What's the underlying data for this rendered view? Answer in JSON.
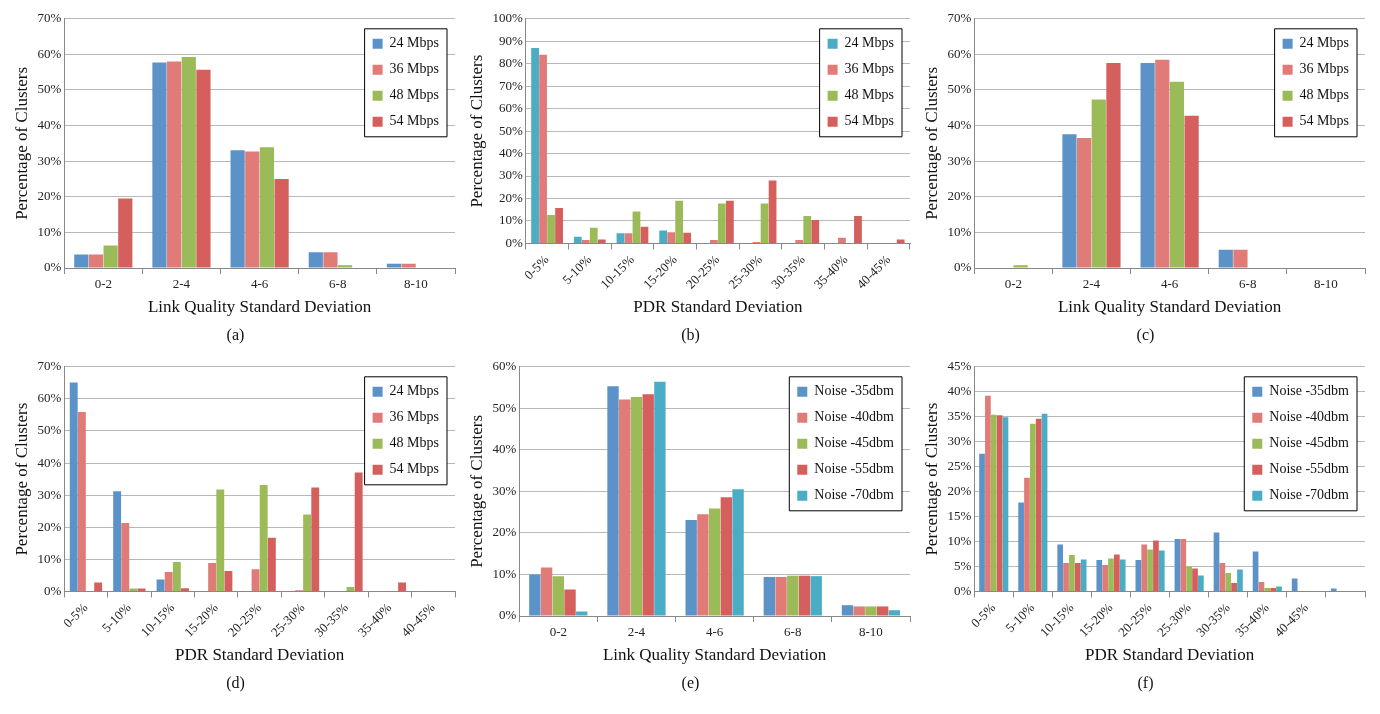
{
  "chart_data": [
    {
      "type": "bar",
      "xlabel": "Link Quality Standard Deviation",
      "ylabel": "Percentage of Clusters",
      "annotations": [
        "(a)"
      ],
      "categories": [
        "0-2",
        "2-4",
        "4-6",
        "6-8",
        "8-10"
      ],
      "series": [
        {
          "name": "24 Mbps",
          "color": "#5b93c9",
          "values": [
            3.8,
            57.7,
            33.1,
            4.4,
            1.2
          ]
        },
        {
          "name": "36 Mbps",
          "color": "#e07b78",
          "values": [
            3.8,
            58,
            32.7,
            4.4,
            1.2
          ]
        },
        {
          "name": "48 Mbps",
          "color": "#9bbb59",
          "values": [
            6.3,
            59.3,
            33.9,
            0.8,
            0
          ]
        },
        {
          "name": "54 Mbps",
          "color": "#d45f5c",
          "values": [
            19.5,
            55.7,
            25,
            0,
            0
          ]
        }
      ],
      "ylim": [
        0,
        70
      ],
      "yticks": [
        {
          "value": 0,
          "label": "0%"
        },
        {
          "value": 10,
          "label": "10%"
        },
        {
          "value": 20,
          "label": "20%"
        },
        {
          "value": 30,
          "label": "30%"
        },
        {
          "value": 40,
          "label": "40%"
        },
        {
          "value": 50,
          "label": "50%"
        },
        {
          "value": 60,
          "label": "60%"
        },
        {
          "value": 70,
          "label": "70%"
        }
      ],
      "grid": "y",
      "legend": "top right"
    },
    {
      "type": "bar",
      "xlabel": "PDR Standard Deviation",
      "ylabel": "Percentage of Clusters",
      "annotations": [
        "(b)"
      ],
      "categories": [
        "0-5%",
        "5-10%",
        "10-15%",
        "15-20%",
        "20-25%",
        "25-30%",
        "30-35%",
        "35-40%",
        "40-45%"
      ],
      "series": [
        {
          "name": "24 Mbps",
          "color": "#4bacc6",
          "values": [
            87,
            3,
            4.5,
            5.8,
            0,
            0,
            0,
            0,
            0
          ]
        },
        {
          "name": "36 Mbps",
          "color": "#e07b78",
          "values": [
            84,
            1.5,
            4.5,
            5,
            1.5,
            0.7,
            1.5,
            2.5,
            0
          ]
        },
        {
          "name": "48 Mbps",
          "color": "#9bbb59",
          "values": [
            12.7,
            7,
            14.2,
            19,
            17.8,
            17.8,
            12.2,
            0,
            0
          ]
        },
        {
          "name": "54 Mbps",
          "color": "#d45f5c",
          "values": [
            15.8,
            1.8,
            7.4,
            4.8,
            19,
            28,
            10.5,
            12.2,
            1.8
          ]
        }
      ],
      "ylim": [
        0,
        100
      ],
      "yticks": [
        {
          "value": 0,
          "label": "0%"
        },
        {
          "value": 10,
          "label": "10%"
        },
        {
          "value": 20,
          "label": "20%"
        },
        {
          "value": 30,
          "label": "30%"
        },
        {
          "value": 40,
          "label": "40%"
        },
        {
          "value": 50,
          "label": "50%"
        },
        {
          "value": 60,
          "label": "60%"
        },
        {
          "value": 70,
          "label": "70%"
        },
        {
          "value": 80,
          "label": "80%"
        },
        {
          "value": 90,
          "label": "90%"
        },
        {
          "value": 100,
          "label": "100%"
        }
      ],
      "grid": "y",
      "legend": "top right"
    },
    {
      "type": "bar",
      "xlabel": "Link Quality Standard Deviation",
      "ylabel": "Percentage of Clusters",
      "annotations": [
        "(c)"
      ],
      "categories": [
        "0-2",
        "2-4",
        "4-6",
        "6-8",
        "8-10"
      ],
      "series": [
        {
          "name": "24 Mbps",
          "color": "#5b93c9",
          "values": [
            0,
            37.6,
            57.6,
            5.1,
            0
          ]
        },
        {
          "name": "36 Mbps",
          "color": "#e07b78",
          "values": [
            0,
            36.5,
            58.5,
            5.1,
            0
          ]
        },
        {
          "name": "48 Mbps",
          "color": "#9bbb59",
          "values": [
            0.8,
            47.3,
            52.3,
            0,
            0
          ]
        },
        {
          "name": "54 Mbps",
          "color": "#d45f5c",
          "values": [
            0,
            57.6,
            42.8,
            0,
            0
          ]
        }
      ],
      "ylim": [
        0,
        70
      ],
      "yticks": [
        {
          "value": 0,
          "label": "0%"
        },
        {
          "value": 10,
          "label": "10%"
        },
        {
          "value": 20,
          "label": "20%"
        },
        {
          "value": 30,
          "label": "30%"
        },
        {
          "value": 40,
          "label": "40%"
        },
        {
          "value": 50,
          "label": "50%"
        },
        {
          "value": 60,
          "label": "60%"
        },
        {
          "value": 70,
          "label": "70%"
        }
      ],
      "grid": "y",
      "legend": "top right"
    },
    {
      "type": "bar",
      "xlabel": "PDR Standard Deviation",
      "ylabel": "Percentage of Clusters",
      "annotations": [
        "(d)"
      ],
      "categories": [
        "0-5%",
        "5-10%",
        "10-15%",
        "15-20%",
        "20-25%",
        "25-30%",
        "30-35%",
        "35-40%",
        "40-45%"
      ],
      "series": [
        {
          "name": "24 Mbps",
          "color": "#5b93c9",
          "values": [
            65.1,
            31.2,
            3.7,
            0,
            0,
            0,
            0,
            0,
            0
          ]
        },
        {
          "name": "36 Mbps",
          "color": "#e07b78",
          "values": [
            55.9,
            21.3,
            6.1,
            8.9,
            6.9,
            0.4,
            0,
            0,
            0
          ]
        },
        {
          "name": "48 Mbps",
          "color": "#9bbb59",
          "values": [
            0,
            0.9,
            9.2,
            31.8,
            33.2,
            24,
            1.4,
            0,
            0
          ]
        },
        {
          "name": "54 Mbps",
          "color": "#d45f5c",
          "values": [
            2.8,
            0.9,
            1,
            6.4,
            16.7,
            32.4,
            37.1,
            2.8,
            0
          ]
        }
      ],
      "ylim": [
        0,
        70
      ],
      "yticks": [
        {
          "value": 0,
          "label": "0%"
        },
        {
          "value": 10,
          "label": "10%"
        },
        {
          "value": 20,
          "label": "20%"
        },
        {
          "value": 30,
          "label": "30%"
        },
        {
          "value": 40,
          "label": "40%"
        },
        {
          "value": 50,
          "label": "50%"
        },
        {
          "value": 60,
          "label": "60%"
        },
        {
          "value": 70,
          "label": "70%"
        }
      ],
      "grid": "y",
      "legend": "top right"
    },
    {
      "type": "bar",
      "xlabel": "Link Quality Standard Deviation",
      "ylabel": "Percentage of Clusters",
      "annotations": [
        "(e)"
      ],
      "categories": [
        "0-2",
        "2-4",
        "4-6",
        "6-8",
        "8-10"
      ],
      "series": [
        {
          "name": "Noise -35dbm",
          "color": "#5b93c9",
          "values": [
            10,
            55.3,
            23.1,
            9.4,
            2.6
          ]
        },
        {
          "name": "Noise -40dbm",
          "color": "#e07b78",
          "values": [
            11.7,
            52.1,
            24.5,
            9.4,
            2.3
          ]
        },
        {
          "name": "Noise -45dbm",
          "color": "#9bbb59",
          "values": [
            9.6,
            52.7,
            25.9,
            9.7,
            2.3
          ]
        },
        {
          "name": "Noise -55dbm",
          "color": "#d45f5c",
          "values": [
            6.4,
            53.4,
            28.6,
            9.7,
            2.3
          ]
        },
        {
          "name": "Noise -70dbm",
          "color": "#4bacc6",
          "values": [
            1.1,
            56.4,
            30.5,
            9.6,
            1.4
          ]
        }
      ],
      "ylim": [
        0,
        60
      ],
      "yticks": [
        {
          "value": 0,
          "label": "0%"
        },
        {
          "value": 10,
          "label": "10%"
        },
        {
          "value": 20,
          "label": "20%"
        },
        {
          "value": 30,
          "label": "30%"
        },
        {
          "value": 40,
          "label": "40%"
        },
        {
          "value": 50,
          "label": "50%"
        },
        {
          "value": 60,
          "label": "60%"
        }
      ],
      "grid": "y",
      "legend": "top right"
    },
    {
      "type": "bar",
      "xlabel": "PDR Standard Deviation",
      "ylabel": "Percentage of Clusters",
      "annotations": [
        "(f)"
      ],
      "categories": [
        "0-5%",
        "5-10%",
        "10-15%",
        "15-20%",
        "20-25%",
        "25-30%",
        "30-35%",
        "35-40%",
        "40-45%",
        null
      ],
      "series": [
        {
          "name": "Noise -35dbm",
          "color": "#5b93c9",
          "values": [
            27.6,
            17.8,
            9.4,
            6.3,
            6.3,
            10.5,
            11.8,
            8,
            2.6,
            0.6
          ]
        },
        {
          "name": "Noise -40dbm",
          "color": "#e07b78",
          "values": [
            39.2,
            22.8,
            5.7,
            5.3,
            9.4,
            10.5,
            5.7,
            1.9,
            0,
            0
          ]
        },
        {
          "name": "Noise -45dbm",
          "color": "#9bbb59",
          "values": [
            35.4,
            33.6,
            7.3,
            6.6,
            8.4,
            5,
            3.7,
            0.7,
            0,
            0
          ]
        },
        {
          "name": "Noise -55dbm",
          "color": "#d45f5c",
          "values": [
            35.3,
            34.6,
            5.7,
            7.4,
            10.2,
            4.6,
            1.7,
            0.7,
            0,
            0
          ]
        },
        {
          "name": "Noise -70dbm",
          "color": "#4bacc6",
          "values": [
            34.9,
            35.6,
            6.4,
            6.4,
            8.2,
            3.2,
            4.4,
            1,
            0,
            0
          ]
        }
      ],
      "ylim": [
        0,
        45
      ],
      "yticks": [
        {
          "value": 0,
          "label": "0%"
        },
        {
          "value": 5,
          "label": "5%"
        },
        {
          "value": 10,
          "label": "10%"
        },
        {
          "value": 15,
          "label": "15%"
        },
        {
          "value": 20,
          "label": "20%"
        },
        {
          "value": 25,
          "label": "25%"
        },
        {
          "value": 30,
          "label": "30%"
        },
        {
          "value": 35,
          "label": "35%"
        },
        {
          "value": 40,
          "label": "40%"
        },
        {
          "value": 45,
          "label": "45%"
        }
      ],
      "grid": "y",
      "legend": "top right"
    }
  ]
}
